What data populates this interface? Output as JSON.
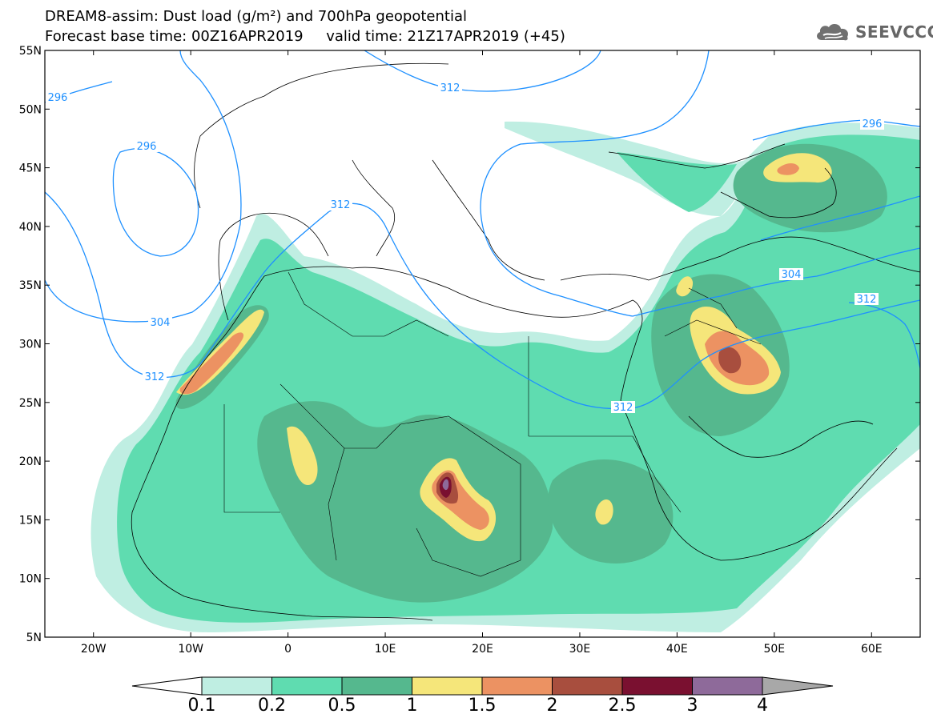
{
  "title": {
    "line1": "DREAM8-assim: Dust load (g/m²) and 700hPa geopotential",
    "line2": "Forecast base time: 00Z16APR2019     valid time: 21Z17APR2019 (+45)"
  },
  "logo": {
    "text": "SEEVCCC",
    "icon": "cloud-icon"
  },
  "map": {
    "projection": "lat-lon",
    "lon_range": [
      -25,
      65
    ],
    "lat_range": [
      5,
      55
    ],
    "lat_ticks": [
      "5N",
      "10N",
      "15N",
      "20N",
      "25N",
      "30N",
      "35N",
      "40N",
      "45N",
      "50N",
      "55N"
    ],
    "lon_ticks": [
      "20W",
      "10W",
      "0",
      "10E",
      "20E",
      "30E",
      "40E",
      "50E",
      "60E"
    ],
    "contour_labels": [
      "296",
      "296",
      "296",
      "304",
      "304",
      "312",
      "312",
      "312",
      "312",
      "312"
    ],
    "contour_color": "#1e90ff"
  },
  "colorbar": {
    "labels": [
      "0.1",
      "0.2",
      "0.5",
      "1",
      "1.5",
      "2",
      "2.5",
      "3",
      "4"
    ],
    "colors": [
      "#ffffff",
      "#bfeee2",
      "#5fdcb0",
      "#55b88e",
      "#f5e67a",
      "#ec9262",
      "#a84e3e",
      "#7a1030",
      "#8e6a9a",
      "#a8a8a8"
    ]
  }
}
